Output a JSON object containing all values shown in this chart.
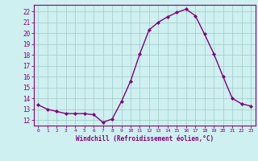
{
  "x": [
    0,
    1,
    2,
    3,
    4,
    5,
    6,
    7,
    8,
    9,
    10,
    11,
    12,
    13,
    14,
    15,
    16,
    17,
    18,
    19,
    20,
    21,
    22,
    23
  ],
  "y": [
    13.4,
    13.0,
    12.8,
    12.6,
    12.6,
    12.6,
    12.5,
    11.8,
    12.1,
    13.7,
    15.6,
    18.1,
    20.3,
    21.0,
    21.5,
    21.9,
    22.2,
    21.6,
    19.9,
    18.1,
    16.0,
    14.0,
    13.5,
    13.3
  ],
  "line_color": "#800080",
  "marker": "D",
  "marker_size": 2.0,
  "bg_color": "#cff0f0",
  "grid_color": "#a0c8c8",
  "ylabel_ticks": [
    12,
    13,
    14,
    15,
    16,
    17,
    18,
    19,
    20,
    21,
    22
  ],
  "ylim": [
    11.5,
    22.6
  ],
  "xlim": [
    -0.5,
    23.5
  ],
  "xlabel": "Windchill (Refroidissement éolien,°C)",
  "xlabel_color": "#800080",
  "tick_color": "#800080",
  "spine_color": "#800080",
  "line_width": 1.0
}
